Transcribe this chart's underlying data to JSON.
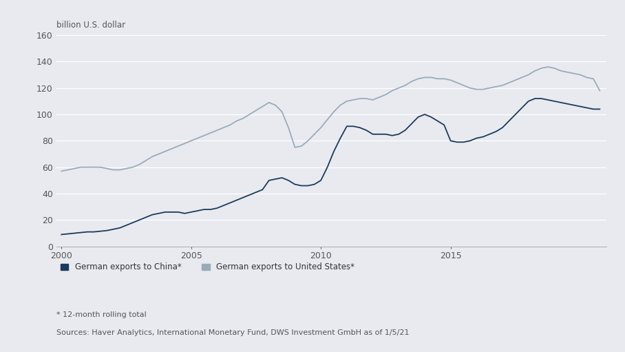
{
  "title_ylabel": "billion U.S. dollar",
  "background_color": "#e8eaf0",
  "plot_background_color": "#e8eaf0",
  "china_color": "#1b3a5c",
  "us_color": "#9aabb8",
  "ylim": [
    0,
    160
  ],
  "yticks": [
    0,
    20,
    40,
    60,
    80,
    100,
    120,
    140,
    160
  ],
  "xlim_start": 1999.8,
  "xlim_end": 2021.0,
  "xticks": [
    2000,
    2005,
    2010,
    2015
  ],
  "legend_china": "German exports to China*",
  "legend_us": "German exports to United States*",
  "footnote1": "* 12-month rolling total",
  "footnote2": "Sources: Haver Analytics, International Monetary Fund, DWS Investment GmbH as of 1/5/21",
  "china_x": [
    2000.0,
    2000.25,
    2000.5,
    2000.75,
    2001.0,
    2001.25,
    2001.5,
    2001.75,
    2002.0,
    2002.25,
    2002.5,
    2002.75,
    2003.0,
    2003.25,
    2003.5,
    2003.75,
    2004.0,
    2004.25,
    2004.5,
    2004.75,
    2005.0,
    2005.25,
    2005.5,
    2005.75,
    2006.0,
    2006.25,
    2006.5,
    2006.75,
    2007.0,
    2007.25,
    2007.5,
    2007.75,
    2008.0,
    2008.25,
    2008.5,
    2008.75,
    2009.0,
    2009.25,
    2009.5,
    2009.75,
    2010.0,
    2010.25,
    2010.5,
    2010.75,
    2011.0,
    2011.25,
    2011.5,
    2011.75,
    2012.0,
    2012.25,
    2012.5,
    2012.75,
    2013.0,
    2013.25,
    2013.5,
    2013.75,
    2014.0,
    2014.25,
    2014.5,
    2014.75,
    2015.0,
    2015.25,
    2015.5,
    2015.75,
    2016.0,
    2016.25,
    2016.5,
    2016.75,
    2017.0,
    2017.25,
    2017.5,
    2017.75,
    2018.0,
    2018.25,
    2018.5,
    2018.75,
    2019.0,
    2019.25,
    2019.5,
    2019.75,
    2020.0,
    2020.25,
    2020.5,
    2020.75
  ],
  "china_y": [
    9,
    9.5,
    10,
    10.5,
    11,
    11,
    11.5,
    12,
    13,
    14,
    16,
    18,
    20,
    22,
    24,
    25,
    26,
    26,
    26,
    25,
    26,
    27,
    28,
    28,
    29,
    31,
    33,
    35,
    37,
    39,
    41,
    43,
    50,
    51,
    52,
    50,
    47,
    46,
    46,
    47,
    50,
    60,
    72,
    82,
    91,
    91,
    90,
    88,
    85,
    85,
    85,
    84,
    85,
    88,
    93,
    98,
    100,
    98,
    95,
    92,
    80,
    79,
    79,
    80,
    82,
    83,
    85,
    87,
    90,
    95,
    100,
    105,
    110,
    112,
    112,
    111,
    110,
    109,
    108,
    107,
    106,
    105,
    104,
    104
  ],
  "us_x": [
    2000.0,
    2000.25,
    2000.5,
    2000.75,
    2001.0,
    2001.25,
    2001.5,
    2001.75,
    2002.0,
    2002.25,
    2002.5,
    2002.75,
    2003.0,
    2003.25,
    2003.5,
    2003.75,
    2004.0,
    2004.25,
    2004.5,
    2004.75,
    2005.0,
    2005.25,
    2005.5,
    2005.75,
    2006.0,
    2006.25,
    2006.5,
    2006.75,
    2007.0,
    2007.25,
    2007.5,
    2007.75,
    2008.0,
    2008.25,
    2008.5,
    2008.75,
    2009.0,
    2009.25,
    2009.5,
    2009.75,
    2010.0,
    2010.25,
    2010.5,
    2010.75,
    2011.0,
    2011.25,
    2011.5,
    2011.75,
    2012.0,
    2012.25,
    2012.5,
    2012.75,
    2013.0,
    2013.25,
    2013.5,
    2013.75,
    2014.0,
    2014.25,
    2014.5,
    2014.75,
    2015.0,
    2015.25,
    2015.5,
    2015.75,
    2016.0,
    2016.25,
    2016.5,
    2016.75,
    2017.0,
    2017.25,
    2017.5,
    2017.75,
    2018.0,
    2018.25,
    2018.5,
    2018.75,
    2019.0,
    2019.25,
    2019.5,
    2019.75,
    2020.0,
    2020.25,
    2020.5,
    2020.75
  ],
  "us_y": [
    57,
    58,
    59,
    60,
    60,
    60,
    60,
    59,
    58,
    58,
    59,
    60,
    62,
    65,
    68,
    70,
    72,
    74,
    76,
    78,
    80,
    82,
    84,
    86,
    88,
    90,
    92,
    95,
    97,
    100,
    103,
    106,
    109,
    107,
    102,
    90,
    75,
    76,
    80,
    85,
    90,
    96,
    102,
    107,
    110,
    111,
    112,
    112,
    111,
    113,
    115,
    118,
    120,
    122,
    125,
    127,
    128,
    128,
    127,
    127,
    126,
    124,
    122,
    120,
    119,
    119,
    120,
    121,
    122,
    124,
    126,
    128,
    130,
    133,
    135,
    136,
    135,
    133,
    132,
    131,
    130,
    128,
    127,
    118
  ]
}
